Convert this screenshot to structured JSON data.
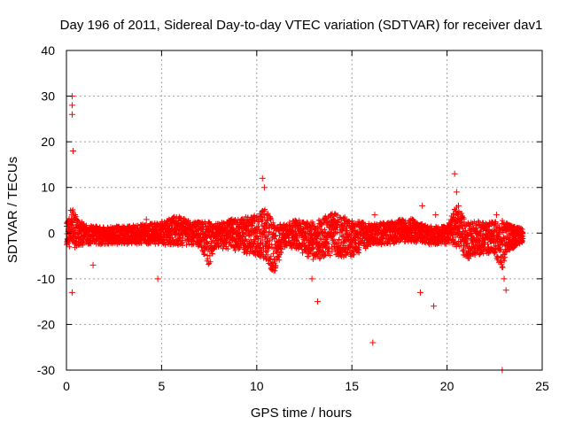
{
  "chart_data": {
    "type": "scatter",
    "title": "Day 196 of 2011, Sidereal Day-to-day VTEC variation (SDTVAR) for receiver dav1",
    "xlabel": "GPS time / hours",
    "ylabel": "SDTVAR / TECUs",
    "xlim": [
      0,
      25
    ],
    "ylim": [
      -30,
      40
    ],
    "xticks": [
      0,
      5,
      10,
      15,
      20,
      25
    ],
    "yticks": [
      -30,
      -20,
      -10,
      0,
      10,
      20,
      30,
      40
    ],
    "xtick_labels": [
      "0",
      "5",
      "10",
      "15",
      "20",
      "25"
    ],
    "ytick_labels": [
      "-30",
      "-20",
      "-10",
      "0",
      "10",
      "20",
      "30",
      "40"
    ],
    "grid": true,
    "marker": "+",
    "color": "#ff0000",
    "band_envelope": {
      "description": "dense data band: [hour, lower, upper] in TECU",
      "points": [
        [
          0.0,
          -2.5,
          2.5
        ],
        [
          0.3,
          -4.0,
          6.0
        ],
        [
          0.6,
          -3.0,
          3.0
        ],
        [
          1.0,
          -2.5,
          2.0
        ],
        [
          2.0,
          -2.5,
          1.5
        ],
        [
          3.0,
          -2.5,
          1.5
        ],
        [
          4.0,
          -2.5,
          2.0
        ],
        [
          5.0,
          -2.5,
          2.5
        ],
        [
          5.8,
          -3.0,
          4.0
        ],
        [
          6.5,
          -2.5,
          2.5
        ],
        [
          7.0,
          -3.0,
          2.5
        ],
        [
          7.5,
          -7.5,
          2.5
        ],
        [
          7.8,
          -3.0,
          2.0
        ],
        [
          8.2,
          -3.5,
          2.5
        ],
        [
          9.0,
          -4.0,
          3.5
        ],
        [
          10.0,
          -5.0,
          4.0
        ],
        [
          10.5,
          -6.0,
          5.5
        ],
        [
          10.9,
          -9.0,
          2.0
        ],
        [
          11.5,
          -3.0,
          2.0
        ],
        [
          12.0,
          -3.5,
          3.0
        ],
        [
          13.0,
          -6.0,
          2.5
        ],
        [
          14.0,
          -5.0,
          4.5
        ],
        [
          15.0,
          -5.5,
          3.0
        ],
        [
          16.0,
          -2.5,
          2.0
        ],
        [
          17.0,
          -2.5,
          2.5
        ],
        [
          18.0,
          -2.0,
          3.5
        ],
        [
          19.0,
          -2.5,
          1.5
        ],
        [
          20.0,
          -2.5,
          1.5
        ],
        [
          20.5,
          -3.0,
          6.5
        ],
        [
          21.0,
          -6.0,
          2.5
        ],
        [
          21.5,
          -5.0,
          3.0
        ],
        [
          22.0,
          -4.5,
          2.5
        ],
        [
          22.5,
          -5.0,
          2.5
        ],
        [
          22.9,
          -8.0,
          3.0
        ],
        [
          23.2,
          -4.0,
          2.0
        ],
        [
          24.0,
          -2.0,
          1.0
        ]
      ]
    },
    "outliers": {
      "x": [
        0.3,
        0.3,
        0.3,
        0.35,
        0.3,
        1.4,
        4.2,
        4.8,
        10.3,
        10.4,
        12.9,
        13.2,
        16.1,
        16.2,
        18.6,
        18.7,
        19.3,
        19.4,
        20.4,
        20.5,
        20.6,
        22.6,
        22.9,
        23.0,
        23.1
      ],
      "y": [
        30,
        28,
        26,
        18,
        -13,
        -7,
        3,
        -10,
        12,
        10,
        -10,
        -15,
        -24,
        4,
        -13,
        6,
        -16,
        4,
        13,
        9,
        6,
        4,
        -30,
        -10,
        -12.5
      ]
    }
  }
}
